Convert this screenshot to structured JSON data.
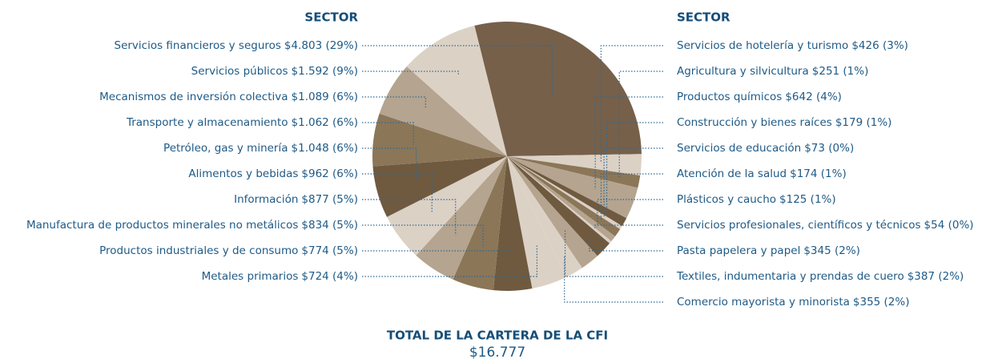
{
  "chart_data": {
    "type": "pie",
    "legend_titles": [
      "SECTOR",
      "SECTOR"
    ],
    "categories": [
      "Servicios financieros y seguros",
      "Servicios de hotelería y turismo",
      "Agricultura y silvicultura",
      "Productos químicos",
      "Construcción y bienes raíces",
      "Servicios de educación",
      "Atención de la salud",
      "Plásticos y caucho",
      "Servicios profesionales, científicos y técnicos",
      "Pasta papelera y papel",
      "Textiles, indumentaria y prendas de cuero",
      "Comercio mayorista y minorista",
      "Metales primarios",
      "Productos industriales y de consumo",
      "Manufactura de productos minerales no metálicos",
      "Información",
      "Alimentos y bebidas",
      "Petróleo, gas y minería",
      "Transporte y almacenamiento",
      "Mecanismos de inversión colectiva",
      "Servicios públicos"
    ],
    "values": [
      4803,
      426,
      251,
      642,
      179,
      73,
      174,
      125,
      54,
      345,
      387,
      355,
      724,
      774,
      834,
      877,
      962,
      1048,
      1062,
      1089,
      1592
    ],
    "value_labels": [
      "$4.803 (29%)",
      "$426 (3%)",
      "$251 (1%)",
      "$642 (4%)",
      "$179 (1%)",
      "$73 (0%)",
      "$174 (1%)",
      "$125 (1%)",
      "$54 (0%)",
      "$345 (2%)",
      "$387 (2%)",
      "$355 (2%)",
      "$724 (4%)",
      "$774 (5%)",
      "$834 (5%)",
      "$877 (5%)",
      "$962 (6%)",
      "$1.048 (6%)",
      "$1.062 (6%)",
      "$1.089 (6%)",
      "$1.592 (9%)"
    ],
    "colors": [
      "#76604a",
      "#dcd1c5",
      "#8b7658",
      "#b5a48f",
      "#6f5a40",
      "#dcd1c5",
      "#8b7658",
      "#b5a48f",
      "#dcd1c5",
      "#6f5a40",
      "#b5a48f",
      "#dcd1c5",
      "#dcd1c5",
      "#6f5a40",
      "#8b7658",
      "#b5a48f",
      "#dcd1c5",
      "#6f5a40",
      "#8b7658",
      "#b5a48f",
      "#dcd1c5"
    ],
    "total": {
      "label": "TOTAL DE LA CARTERA DE LA CFI",
      "value_label": "$16.777"
    }
  }
}
